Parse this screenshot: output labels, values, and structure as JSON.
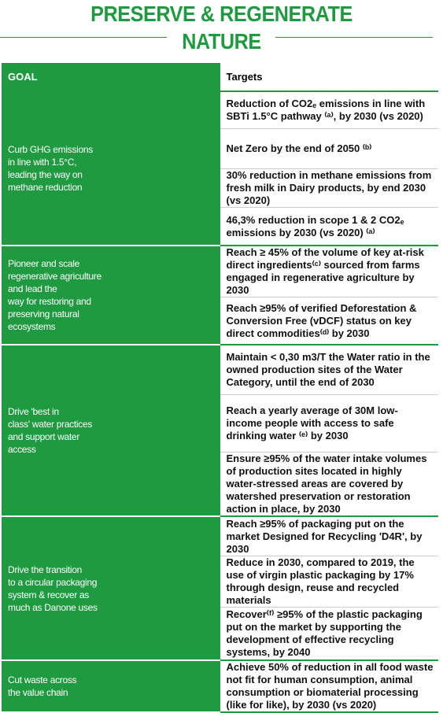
{
  "header": {
    "title_line1": "PRESERVE & REGENERATE",
    "title_line2": "NATURE"
  },
  "table": {
    "columns": [
      "GOAL",
      "Targets"
    ],
    "groups": [
      {
        "goal": "Curb GHG emissions\nin line with 1.5°C,\nleading the way on\nmethane reduction",
        "targets": [
          "Reduction of CO2ₑ emissions in line with SBTi 1.5°C pathway ⁽ᵃ⁾, by 2030 (vs 2020)",
          "Net Zero by the end of 2050 ⁽ᵇ⁾",
          "30% reduction in methane emissions from fresh milk in Dairy products, by end 2030 (vs 2020)",
          "46,3% reduction in scope 1 & 2 CO2ₑ emissions by 2030 (vs 2020) ⁽ᵃ⁾"
        ]
      },
      {
        "goal": "Pioneer and scale\nregenerative agriculture\nand lead the\nway for restoring and\npreserving natural\necosystems",
        "targets": [
          "Reach ≥ 45% of the volume of key at-risk direct ingredients⁽ᶜ⁾ sourced from farms engaged in regenerative agriculture by 2030",
          "Reach ≥95% of verified Deforestation & Conversion Free (vDCF) status on key direct commodities⁽ᵈ⁾ by 2030"
        ]
      },
      {
        "goal": "Drive 'best in\nclass' water practices\nand support water\naccess",
        "targets": [
          "Maintain  < 0,30 m3/T the Water ratio in the owned production sites of the Water Category, until the end of 2030",
          "Reach a yearly average of 30M low-income people with access to safe drinking water ⁽ᵉ⁾ by 2030",
          "Ensure ≥95% of the water intake volumes of production sites located in highly water-stressed areas are covered by watershed preservation or restoration action in place, by 2030"
        ]
      },
      {
        "goal": "Drive the transition\nto a circular packaging\nsystem & recover as\nmuch as Danone uses",
        "targets": [
          "Reach ≥95% of packaging put on the market Designed for Recycling 'D4R', by 2030",
          "Reduce in 2030, compared to 2019, the use of virgin plastic packaging by 17% through design, reuse and recycled materials",
          "Recover⁽ᶠ⁾ ≥95% of the plastic packaging put on the market by supporting the development of effective recycling systems, by 2040"
        ]
      },
      {
        "goal": "Cut waste across\nthe value chain",
        "targets": [
          "Achieve 50% of reduction in all food waste not fit for human consumption, animal consumption or biomaterial processing (like for like), by 2030 (vs 2020)"
        ]
      }
    ]
  }
}
